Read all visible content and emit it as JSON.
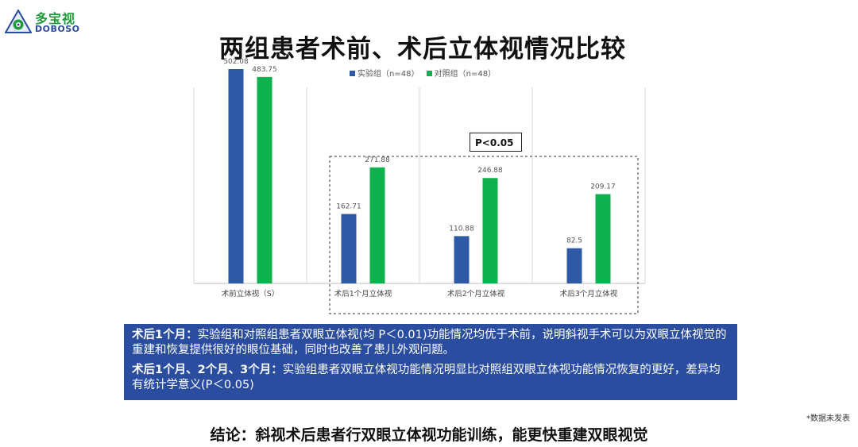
{
  "brand": {
    "name_cn": "多宝视",
    "name_en": "DOBOSO",
    "colors": {
      "green": "#1f9a3c",
      "blue": "#2a4c9c"
    }
  },
  "slide_title": "两组患者术前、术后立体视情况比较",
  "legend": [
    {
      "label": "实验组（n=48）",
      "color": "#2e59a6"
    },
    {
      "label": "对照组（n=48）",
      "color": "#0fb14f"
    }
  ],
  "significance_label": "P<0.05",
  "chart_data": {
    "type": "bar",
    "categories": [
      "术前立体视（S）",
      "术后1个月立体视",
      "术后2个月立体视",
      "术后3个月立体视"
    ],
    "series": [
      {
        "name": "实验组（n=48）",
        "color": "#2e59a6",
        "values": [
          502.08,
          162.71,
          110.88,
          82.5
        ]
      },
      {
        "name": "对照组（n=48）",
        "color": "#0fb14f",
        "values": [
          483.75,
          271.88,
          246.88,
          209.17
        ]
      }
    ],
    "value_labels": [
      [
        "502.08",
        "162.71",
        "110.88",
        "82.5"
      ],
      [
        "483.75",
        "271.88",
        "246.88",
        "209.17"
      ]
    ],
    "ylim": [
      0,
      600
    ],
    "grid": false,
    "legend_position": "top-center"
  },
  "notes": [
    {
      "heading": "术后1个月：",
      "text": "实验组和对照组患者双眼立体视(均 P＜0.01)功能情况均优于术前，说明斜视手术可以为双眼立体视觉的重建和恢复提供很好的眼位基础，同时也改善了患儿外观问题。"
    },
    {
      "heading": "术后1个月、2个月、3个月：",
      "text": "实验组患者双眼立体视功能情况明显比对照组双眼立体视功能情况恢复的更好，差异均有统计学意义(P＜0.05)"
    }
  ],
  "footnote": "*数据未发表",
  "conclusion": "结论：斜视术后患者行双眼立体视功能训练，能更快重建双眼视觉"
}
